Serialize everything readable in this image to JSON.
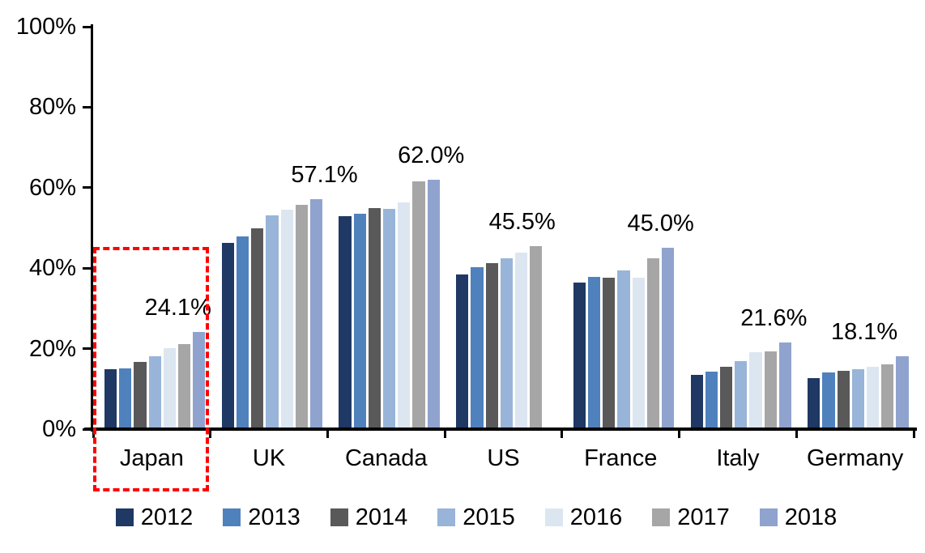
{
  "chart_data": {
    "type": "bar",
    "title": "",
    "categories": [
      "Japan",
      "UK",
      "Canada",
      "US",
      "France",
      "Italy",
      "Germany"
    ],
    "series": [
      {
        "name": "2012",
        "color": "#1F3864",
        "values": [
          14.9,
          46.3,
          53.0,
          38.5,
          36.5,
          13.4,
          12.7
        ]
      },
      {
        "name": "2013",
        "color": "#4F81BD",
        "values": [
          15.0,
          47.8,
          53.5,
          40.3,
          37.8,
          14.3,
          14.1
        ]
      },
      {
        "name": "2014",
        "color": "#595959",
        "values": [
          16.7,
          49.9,
          55.0,
          41.3,
          37.7,
          15.4,
          14.4
        ]
      },
      {
        "name": "2015",
        "color": "#98B4D9",
        "values": [
          18.1,
          53.2,
          54.8,
          42.4,
          39.5,
          17.0,
          14.8
        ]
      },
      {
        "name": "2016",
        "color": "#DCE6F1",
        "values": [
          20.1,
          54.6,
          56.3,
          43.8,
          37.6,
          19.1,
          15.4
        ]
      },
      {
        "name": "2017",
        "color": "#A6A6A6",
        "values": [
          21.2,
          55.7,
          61.6,
          45.5,
          42.4,
          19.3,
          16.0
        ]
      },
      {
        "name": "2018",
        "color": "#8FA3CE",
        "values": [
          24.1,
          57.1,
          62.0,
          null,
          45.0,
          21.6,
          18.1
        ]
      }
    ],
    "data_labels": [
      "24.1%",
      "57.1%",
      "62.0%",
      "45.5%",
      "45.0%",
      "21.6%",
      "18.1%"
    ],
    "y_axis": {
      "tick_labels": [
        "0%",
        "20%",
        "40%",
        "60%",
        "80%",
        "100%"
      ],
      "min": 0,
      "max": 100,
      "step": 20
    },
    "grid": false,
    "legend_position": "bottom",
    "legend": [
      "2012",
      "2013",
      "2014",
      "2015",
      "2016",
      "2017",
      "2018"
    ],
    "highlight": {
      "category": "Japan",
      "shape": "dashed-rectangle",
      "color": "#FF0000"
    }
  }
}
